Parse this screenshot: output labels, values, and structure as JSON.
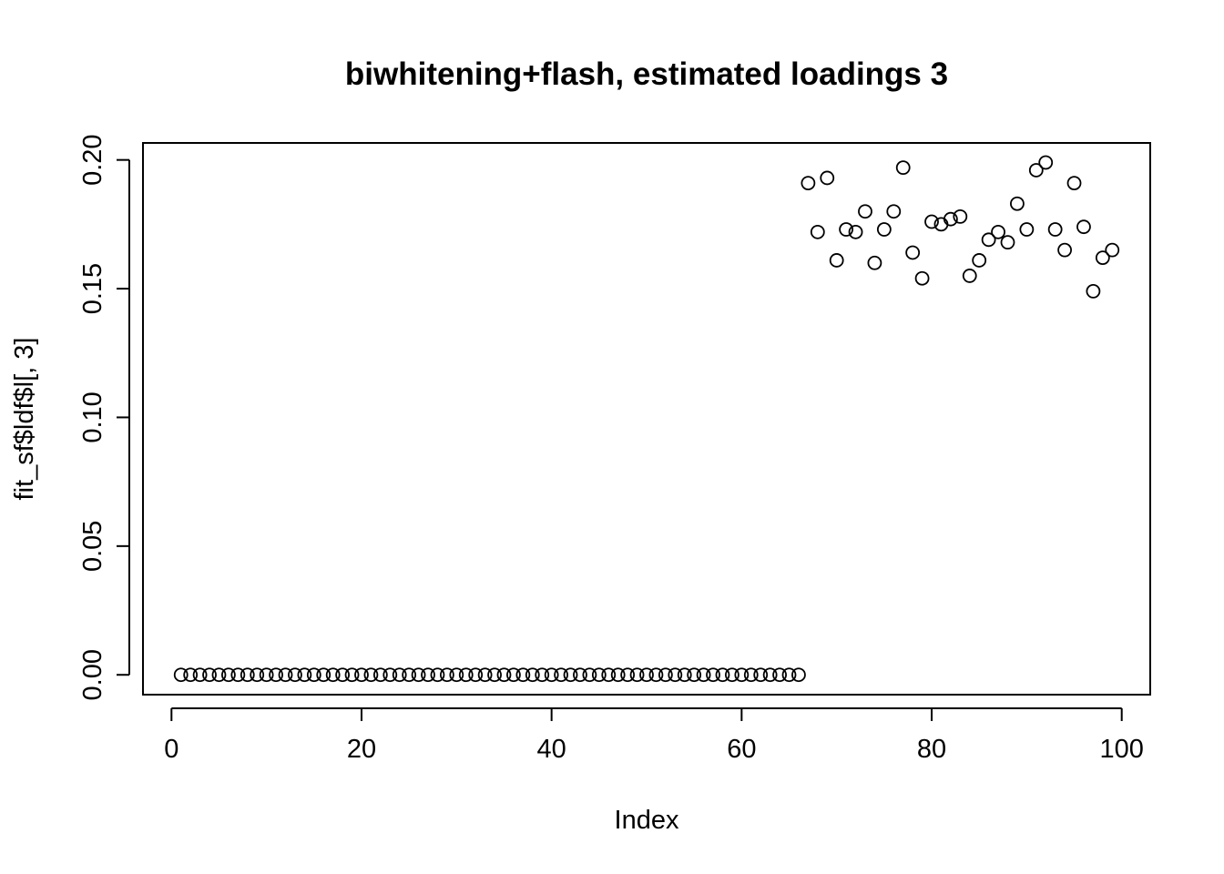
{
  "chart_data": {
    "type": "scatter",
    "title": "biwhitening+flash, estimated loadings 3",
    "xlabel": "Index",
    "ylabel": "fit_sf$ldf$l[, 3]",
    "xlim": [
      -3,
      103
    ],
    "ylim": [
      -0.0077,
      0.2066
    ],
    "x_ticks": [
      0,
      20,
      40,
      60,
      80,
      100
    ],
    "y_ticks": [
      0.0,
      0.05,
      0.1,
      0.15,
      0.2
    ],
    "x_tick_labels": [
      "0",
      "20",
      "40",
      "60",
      "80",
      "100"
    ],
    "y_tick_labels": [
      "0.00",
      "0.05",
      "0.10",
      "0.15",
      "0.20"
    ],
    "grid": false,
    "legend": "none",
    "marker": "open-circle",
    "x": [
      1,
      2,
      3,
      4,
      5,
      6,
      7,
      8,
      9,
      10,
      11,
      12,
      13,
      14,
      15,
      16,
      17,
      18,
      19,
      20,
      21,
      22,
      23,
      24,
      25,
      26,
      27,
      28,
      29,
      30,
      31,
      32,
      33,
      34,
      35,
      36,
      37,
      38,
      39,
      40,
      41,
      42,
      43,
      44,
      45,
      46,
      47,
      48,
      49,
      50,
      51,
      52,
      53,
      54,
      55,
      56,
      57,
      58,
      59,
      60,
      61,
      62,
      63,
      64,
      65,
      66,
      67,
      68,
      69,
      70,
      71,
      72,
      73,
      74,
      75,
      76,
      77,
      78,
      79,
      80,
      81,
      82,
      83,
      84,
      85,
      86,
      87,
      88,
      89,
      90,
      91,
      92,
      93,
      94,
      95,
      96,
      97,
      98,
      99
    ],
    "y": [
      0,
      0,
      0,
      0,
      0,
      0,
      0,
      0,
      0,
      0,
      0,
      0,
      0,
      0,
      0,
      0,
      0,
      0,
      0,
      0,
      0,
      0,
      0,
      0,
      0,
      0,
      0,
      0,
      0,
      0,
      0,
      0,
      0,
      0,
      0,
      0,
      0,
      0,
      0,
      0,
      0,
      0,
      0,
      0,
      0,
      0,
      0,
      0,
      0,
      0,
      0,
      0,
      0,
      0,
      0,
      0,
      0,
      0,
      0,
      0,
      0,
      0,
      0,
      0,
      0,
      0,
      0.191,
      0.172,
      0.193,
      0.161,
      0.173,
      0.172,
      0.18,
      0.16,
      0.173,
      0.18,
      0.197,
      0.164,
      0.154,
      0.176,
      0.175,
      0.177,
      0.178,
      0.155,
      0.161,
      0.169,
      0.172,
      0.168,
      0.183,
      0.173,
      0.196,
      0.199,
      0.173,
      0.165,
      0.191,
      0.174,
      0.149,
      0.162,
      0.165
    ]
  }
}
